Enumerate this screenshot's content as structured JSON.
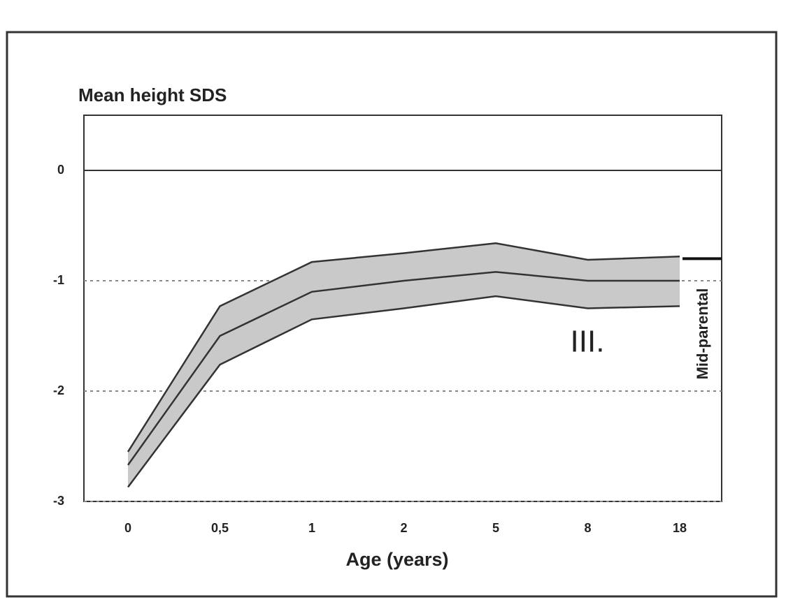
{
  "chart_data": {
    "type": "line",
    "title": "Mean height SDS",
    "x_label": "Age (years)",
    "categories": [
      "0",
      "0,5",
      "1",
      "2",
      "5",
      "8",
      "18"
    ],
    "band_color": "#c9c9c9",
    "series": [
      {
        "color": "#333333",
        "values": [
          -2.67,
          -1.5,
          -1.1,
          -1.0,
          -0.92,
          -1.0,
          -1.0
        ]
      },
      {
        "color": "#333333",
        "values": [
          -2.55,
          -1.23,
          -0.83,
          -0.75,
          -0.66,
          -0.81,
          -0.78
        ]
      },
      {
        "color": "#333333",
        "values": [
          -2.87,
          -1.76,
          -1.35,
          -1.25,
          -1.14,
          -1.25,
          -1.23
        ]
      }
    ],
    "reference_line": {
      "label": "Mid-parental",
      "value": -0.8
    },
    "annotation": "III.",
    "ylim": [
      -3,
      0.5
    ],
    "yticks": [
      0,
      -1,
      -2,
      -3
    ],
    "grid": true
  }
}
